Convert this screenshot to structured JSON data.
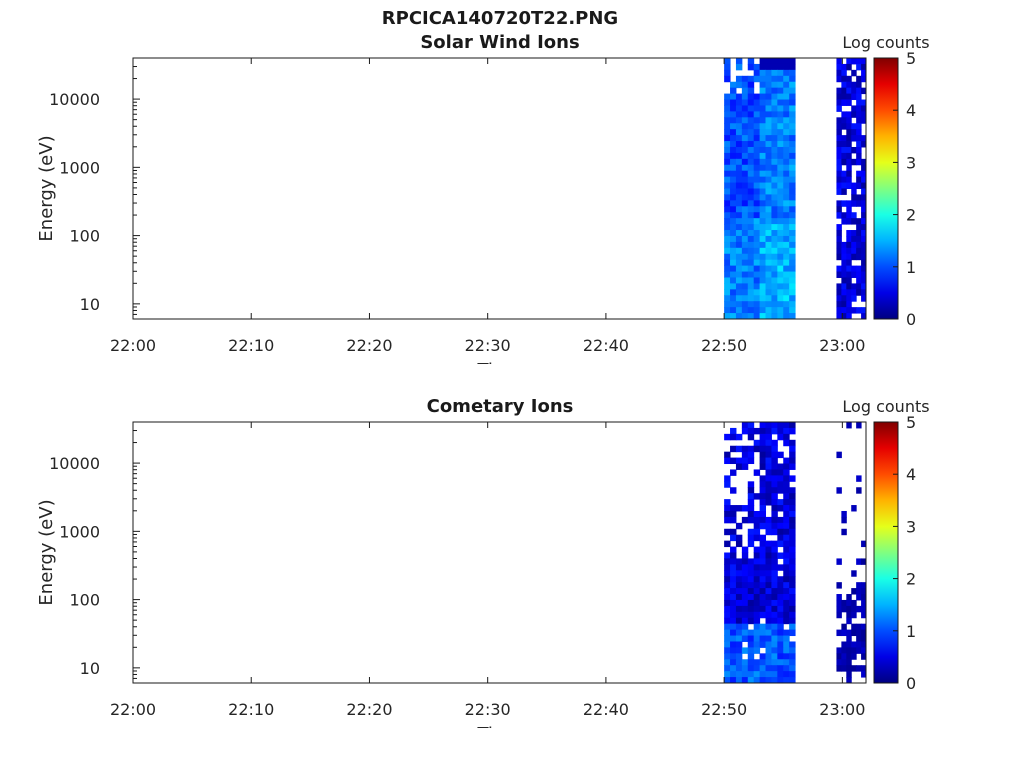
{
  "figure_title": "RPCICA140720T22.PNG",
  "chart_data": [
    {
      "type": "heatmap",
      "title": "Solar Wind Ions",
      "xlabel": "Time",
      "ylabel": "Energy (eV)",
      "x_ticks": [
        "22:00",
        "22:10",
        "22:20",
        "22:30",
        "22:40",
        "22:50",
        "23:00"
      ],
      "y_ticks": [
        "10",
        "100",
        "1000",
        "10000"
      ],
      "y_scale": "log",
      "ylim_eV": [
        6,
        40000
      ],
      "xlim": [
        "22:00",
        "23:02"
      ],
      "colorbar": {
        "label": "Log counts",
        "range": [
          0,
          5
        ],
        "ticks": [
          "0",
          "1",
          "2",
          "3",
          "4",
          "5"
        ],
        "colormap": "jet"
      },
      "data_blocks": [
        {
          "time_start": "22:50",
          "time_end": "22:56",
          "energy_range_eV": [
            6,
            40000
          ],
          "log_counts_approx": 0.7,
          "note": "dense block; sparse speckle at highest energies"
        },
        {
          "time_start": "22:59.5",
          "time_end": "23:02",
          "energy_range_eV": [
            6,
            40000
          ],
          "log_counts_approx": 0.2,
          "note": "patchy, white gaps"
        }
      ]
    },
    {
      "type": "heatmap",
      "title": "Cometary Ions",
      "xlabel": "Time",
      "ylabel": "Energy (eV)",
      "x_ticks": [
        "22:00",
        "22:10",
        "22:20",
        "22:30",
        "22:40",
        "22:50",
        "23:00"
      ],
      "y_ticks": [
        "10",
        "100",
        "1000",
        "10000"
      ],
      "y_scale": "log",
      "ylim_eV": [
        6,
        40000
      ],
      "xlim": [
        "22:00",
        "23:02"
      ],
      "colorbar": {
        "label": "Log counts",
        "range": [
          0,
          5
        ],
        "ticks": [
          "0",
          "1",
          "2",
          "3",
          "4",
          "5"
        ],
        "colormap": "jet"
      },
      "data_blocks": [
        {
          "time_start": "22:50",
          "time_end": "22:56",
          "energy_range_eV": [
            6,
            40000
          ],
          "log_counts_approx": 0.4,
          "note": "sparse speckle above 200 eV, denser below"
        },
        {
          "time_start": "22:59.5",
          "time_end": "23:02",
          "energy_range_eV": [
            6,
            40000
          ],
          "log_counts_approx": 0.1,
          "note": "mostly white, patchy below 200 eV"
        }
      ]
    }
  ]
}
